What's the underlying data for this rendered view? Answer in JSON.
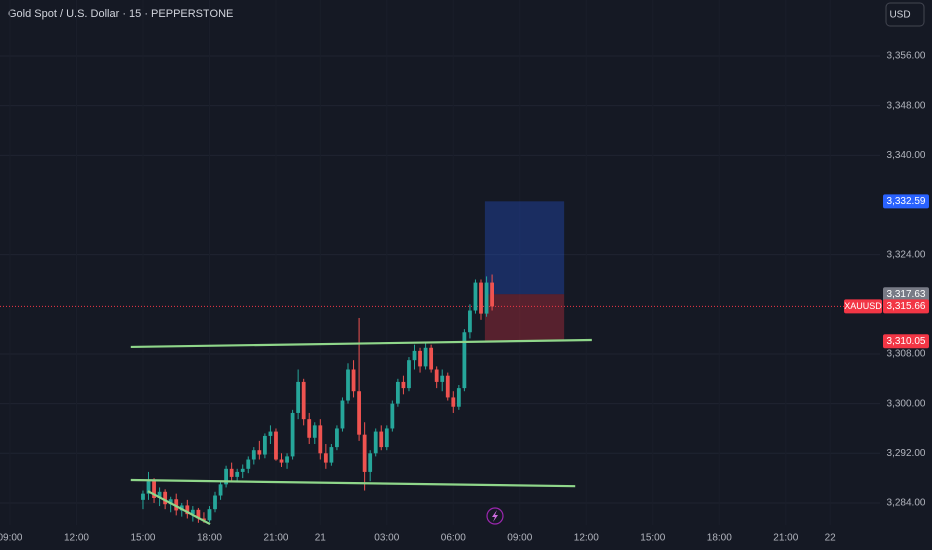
{
  "chart_data": {
    "type": "candlestick",
    "title": "Gold Spot / U.S. Dollar · 15 · PEPPERSTONE",
    "currency": "USD",
    "up_color": "#26a69a",
    "down_color": "#ef5350",
    "grid": true,
    "xlim": [
      -1.8,
      157
    ],
    "ylim": [
      3280.45,
      3365.02
    ],
    "xticks": [
      {
        "value": 0,
        "label": "09:00"
      },
      {
        "value": 12,
        "label": "12:00"
      },
      {
        "value": 24,
        "label": "15:00"
      },
      {
        "value": 36,
        "label": "18:00"
      },
      {
        "value": 48,
        "label": "21:00"
      },
      {
        "value": 56,
        "label": "21"
      },
      {
        "value": 68,
        "label": "03:00"
      },
      {
        "value": 80,
        "label": "06:00"
      },
      {
        "value": 92,
        "label": "09:00"
      },
      {
        "value": 104,
        "label": "12:00"
      },
      {
        "value": 116,
        "label": "15:00"
      },
      {
        "value": 128,
        "label": "18:00"
      },
      {
        "value": 140,
        "label": "21:00"
      },
      {
        "value": 148,
        "label": "22"
      }
    ],
    "yticks": [
      {
        "value": 3356,
        "label": "3,356.00"
      },
      {
        "value": 3348,
        "label": "3,348.00"
      },
      {
        "value": 3340,
        "label": "3,340.00"
      },
      {
        "value": 3324,
        "label": "3,324.00"
      },
      {
        "value": 3308,
        "label": "3,308.00"
      },
      {
        "value": 3300,
        "label": "3,300.00"
      },
      {
        "value": 3292,
        "label": "3,292.00"
      },
      {
        "value": 3284,
        "label": "3,284.00"
      }
    ],
    "x": [
      24,
      25,
      26,
      27,
      28,
      29,
      30,
      31,
      32,
      33,
      34,
      35,
      36,
      37,
      38,
      39,
      40,
      41,
      42,
      43,
      44,
      45,
      46,
      47,
      48,
      49,
      50,
      51,
      52,
      53,
      54,
      55,
      56,
      57,
      58,
      59,
      60,
      61,
      62,
      63,
      64,
      65,
      66,
      67,
      68,
      69,
      70,
      71,
      72,
      73,
      74,
      75,
      76,
      77,
      78,
      79,
      80,
      81,
      82,
      83,
      84,
      85,
      86,
      87
    ],
    "open": [
      3284.5,
      3285.5,
      3287.5,
      3284.8,
      3285.8,
      3283.8,
      3284.6,
      3282.8,
      3283.6,
      3282.2,
      3282.9,
      3281.5,
      3281.2,
      3283,
      3285.2,
      3287,
      3289.5,
      3288.2,
      3289,
      3289.5,
      3291,
      3292.5,
      3291.8,
      3294.8,
      3295.5,
      3291,
      3290.5,
      3291.5,
      3298.5,
      3303.5,
      3297.5,
      3294.5,
      3296.5,
      3292,
      3290.5,
      3293,
      3296,
      3300.5,
      3305.5,
      3302,
      3295,
      3289,
      3292,
      3295.5,
      3293,
      3296,
      3300,
      3303.5,
      3302.5,
      3307,
      3308.5,
      3306,
      3309,
      3305.5,
      3303.5,
      3304.5,
      3301,
      3299.5,
      3302.5,
      3311.5,
      3315,
      3319.5,
      3314.5,
      3319.5
    ],
    "high": [
      3286,
      3289,
      3288,
      3286.5,
      3286.2,
      3285,
      3285.5,
      3284,
      3284.5,
      3283.5,
      3283.2,
      3282.5,
      3283.5,
      3285.8,
      3287.5,
      3290,
      3290.5,
      3289.5,
      3290.2,
      3291.5,
      3293,
      3294,
      3295.2,
      3296.5,
      3296,
      3292,
      3292,
      3299,
      3305.5,
      3304,
      3298.5,
      3297,
      3297.5,
      3293.5,
      3293.5,
      3296.5,
      3301,
      3306.5,
      3307,
      3313.8,
      3297,
      3292.5,
      3296,
      3296.5,
      3296.5,
      3300.5,
      3304,
      3304.5,
      3307.5,
      3309.5,
      3309,
      3310,
      3309.5,
      3306,
      3305.5,
      3305,
      3302,
      3303,
      3312,
      3316,
      3320,
      3320,
      3320.5,
      3320.8
    ],
    "low": [
      3283,
      3284.5,
      3284,
      3283.5,
      3283,
      3282.5,
      3282,
      3281.8,
      3281.5,
      3281,
      3280.8,
      3280.8,
      3280.9,
      3282.5,
      3284.5,
      3286.5,
      3287.5,
      3287.5,
      3288,
      3288.8,
      3290.2,
      3291,
      3291.2,
      3293.5,
      3290.8,
      3289.8,
      3289.5,
      3291,
      3297.5,
      3296.5,
      3293.5,
      3293.5,
      3291,
      3289.5,
      3290,
      3292.5,
      3295.5,
      3300,
      3301,
      3294,
      3286,
      3287.5,
      3291.5,
      3292.5,
      3292.5,
      3295.5,
      3299.5,
      3301.5,
      3302,
      3305.5,
      3305,
      3305.5,
      3305,
      3302.5,
      3302,
      3300.5,
      3298.5,
      3299,
      3302,
      3310.5,
      3314.5,
      3313.5,
      3314,
      3315
    ],
    "close": [
      3285.5,
      3287.5,
      3284.8,
      3285.8,
      3283.8,
      3284.6,
      3282.8,
      3283.6,
      3282.2,
      3282.9,
      3281.5,
      3281.2,
      3283,
      3285.2,
      3287,
      3289.5,
      3288.2,
      3289,
      3289.5,
      3291,
      3292.5,
      3291.8,
      3294.8,
      3295.5,
      3291,
      3290.5,
      3291.5,
      3298.5,
      3303.5,
      3297.5,
      3294.5,
      3296.5,
      3292,
      3290.5,
      3293,
      3296,
      3300.5,
      3305.5,
      3302,
      3295,
      3289,
      3292,
      3295.5,
      3293,
      3296,
      3300,
      3303.5,
      3302.5,
      3307,
      3308.5,
      3306,
      3309,
      3305.5,
      3303.5,
      3304.5,
      3301,
      3299.5,
      3302.5,
      3311.5,
      3315,
      3319.5,
      3314.5,
      3319.5,
      3315.66
    ],
    "trend_lines": [
      {
        "x": [
          21.8,
          105
        ],
        "y": [
          3309.13,
          3310.25
        ],
        "color": "#8fd68a"
      },
      {
        "x": [
          21.8,
          102
        ],
        "y": [
          3287.7,
          3286.7
        ],
        "color": "#8fd68a"
      },
      {
        "x": [
          24.9,
          36.1
        ],
        "y": [
          3285.9,
          3280.6
        ],
        "color": "#8fd68a"
      }
    ],
    "position": {
      "x": [
        85.7,
        100
      ],
      "target": {
        "value": 3332.59,
        "label": "3,332.59"
      },
      "entry": {
        "value": 3317.63,
        "label": "3,317.63"
      },
      "stop": {
        "value": 3310.05,
        "label": "3,310.05"
      }
    },
    "last_price": {
      "symbol": "XAUUSD",
      "value": 3315.66,
      "label": "3,315.66"
    }
  }
}
